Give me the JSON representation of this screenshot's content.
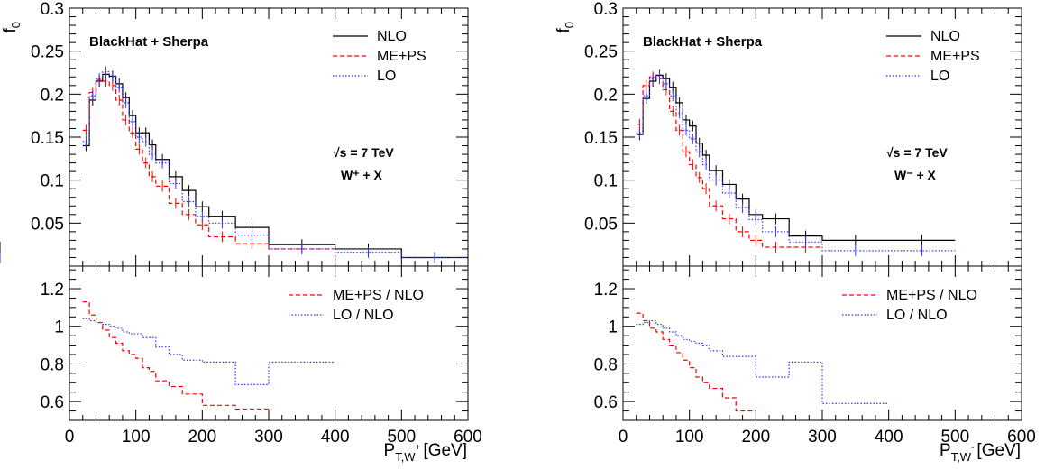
{
  "chart_data": [
    {
      "type": "line",
      "panel": "left",
      "title": "",
      "xlabel": "P_{T,W+} [GeV]",
      "xlabel_main": "P",
      "xlabel_sub": "T,W",
      "xlabel_sup": "+",
      "xlabel_unit": "[GeV]",
      "xlim": [
        0,
        600
      ],
      "xticks": [
        "0",
        "100",
        "200",
        "300",
        "400",
        "500",
        "600"
      ],
      "top": {
        "ylabel": "f",
        "ylabel_sub": "0",
        "ylim": [
          0,
          0.3
        ],
        "yticks": [
          "0.05",
          "0.1",
          "0.15",
          "0.2",
          "0.25",
          "0.3"
        ],
        "annotation_title": "BlackHat + Sherpa",
        "annotation_energy": "√s = 7 TeV",
        "annotation_process": "W⁺ + X",
        "bin_edges": [
          20,
          30,
          40,
          50,
          60,
          70,
          80,
          90,
          100,
          110,
          120,
          130,
          150,
          170,
          190,
          210,
          250,
          300,
          400,
          500,
          600
        ],
        "series": [
          {
            "name": "NLO",
            "color": "#000000",
            "dash": "solid",
            "values": [
              0.14,
              0.193,
              0.215,
              0.223,
              0.221,
              0.212,
              0.196,
              0.175,
              0.155,
              0.155,
              0.141,
              0.124,
              0.104,
              0.088,
              0.069,
              0.058,
              0.045,
              0.025,
              0.02,
              0.01,
              0.01
            ]
          },
          {
            "name": "ME+PS",
            "color": "#ff0000",
            "dash": "dash",
            "values": [
              0.158,
              0.202,
              0.217,
              0.215,
              0.21,
              0.193,
              0.17,
              0.155,
              0.136,
              0.12,
              0.104,
              0.093,
              0.073,
              0.06,
              0.048,
              0.034,
              0.026,
              0.02,
              null,
              null,
              null
            ]
          },
          {
            "name": "LO",
            "color": "#3333ff",
            "dash": "dot",
            "values": [
              0.145,
              0.198,
              0.218,
              0.226,
              0.22,
              0.208,
              0.19,
              0.168,
              0.15,
              0.145,
              0.13,
              0.12,
              0.096,
              0.075,
              0.058,
              0.05,
              0.036,
              0.02,
              0.016,
              0.01,
              0.01
            ]
          }
        ]
      },
      "bottom": {
        "ylim": [
          0.5,
          1.32
        ],
        "yticks": [
          "0.6",
          "0.8",
          "1",
          "1.2"
        ],
        "bin_edges": [
          20,
          30,
          40,
          50,
          60,
          70,
          80,
          90,
          100,
          110,
          120,
          130,
          150,
          170,
          200,
          250,
          300,
          400
        ],
        "series": [
          {
            "name": "ME+PS / NLO",
            "color": "#ff0000",
            "dash": "dash",
            "values": [
              1.13,
              1.06,
              1.02,
              0.98,
              0.94,
              0.91,
              0.87,
              0.85,
              0.83,
              0.78,
              0.76,
              0.71,
              0.68,
              0.64,
              0.58,
              0.56,
              null
            ]
          },
          {
            "name": "LO / NLO",
            "color": "#3333ff",
            "dash": "dot",
            "values": [
              1.04,
              1.03,
              1.02,
              1.01,
              1.0,
              0.99,
              0.97,
              0.96,
              0.96,
              0.94,
              0.94,
              0.89,
              0.85,
              0.82,
              0.81,
              0.69,
              0.81
            ]
          }
        ]
      }
    },
    {
      "type": "line",
      "panel": "right",
      "title": "",
      "xlabel": "P_{T,W-} [GeV]",
      "xlabel_main": "P",
      "xlabel_sub": "T,W",
      "xlabel_sup": "-",
      "xlabel_unit": "[GeV]",
      "xlim": [
        0,
        600
      ],
      "xticks": [
        "0",
        "100",
        "200",
        "300",
        "400",
        "500",
        "600"
      ],
      "top": {
        "ylabel": "f",
        "ylabel_sub": "0",
        "ylim": [
          0,
          0.3
        ],
        "yticks": [
          "0.05",
          "0.1",
          "0.15",
          "0.2",
          "0.25",
          "0.3"
        ],
        "annotation_title": "BlackHat + Sherpa",
        "annotation_energy": "√s = 7 TeV",
        "annotation_process": "W⁻ + X",
        "bin_edges": [
          20,
          30,
          40,
          50,
          60,
          70,
          80,
          90,
          100,
          110,
          120,
          130,
          150,
          170,
          190,
          210,
          250,
          300,
          400,
          500,
          600
        ],
        "series": [
          {
            "name": "NLO",
            "color": "#000000",
            "dash": "solid",
            "values": [
              0.153,
              0.195,
              0.215,
              0.222,
              0.218,
              0.208,
              0.19,
              0.17,
              0.163,
              0.143,
              0.129,
              0.111,
              0.095,
              0.078,
              0.06,
              0.055,
              0.035,
              0.03,
              0.03,
              null,
              0.022
            ]
          },
          {
            "name": "ME+PS",
            "color": "#ff0000",
            "dash": "dash",
            "values": [
              0.165,
              0.21,
              0.22,
              0.218,
              0.205,
              0.18,
              0.158,
              0.133,
              0.118,
              0.103,
              0.09,
              0.07,
              0.055,
              0.04,
              0.03,
              0.022,
              0.022,
              null,
              null,
              null,
              null
            ]
          },
          {
            "name": "LO",
            "color": "#3333ff",
            "dash": "dot",
            "values": [
              0.155,
              0.198,
              0.218,
              0.221,
              0.212,
              0.198,
              0.178,
              0.158,
              0.148,
              0.133,
              0.118,
              0.1,
              0.085,
              0.068,
              0.054,
              0.04,
              0.028,
              0.018,
              0.018,
              null,
              null
            ]
          }
        ]
      },
      "bottom": {
        "ylim": [
          0.5,
          1.32
        ],
        "yticks": [
          "0.6",
          "0.8",
          "1",
          "1.2"
        ],
        "bin_edges": [
          20,
          30,
          40,
          50,
          60,
          70,
          80,
          90,
          100,
          110,
          120,
          130,
          150,
          170,
          200,
          250,
          300,
          400
        ],
        "series": [
          {
            "name": "ME+PS / NLO",
            "color": "#ff0000",
            "dash": "dash",
            "values": [
              1.07,
              1.03,
              0.99,
              0.97,
              0.93,
              0.9,
              0.86,
              0.82,
              0.78,
              0.73,
              0.7,
              0.67,
              0.62,
              0.55,
              null,
              null,
              null
            ]
          },
          {
            "name": "LO / NLO",
            "color": "#3333ff",
            "dash": "dot",
            "values": [
              1.01,
              1.02,
              1.03,
              1.01,
              0.99,
              0.97,
              0.95,
              0.93,
              0.92,
              0.91,
              0.9,
              0.87,
              0.84,
              0.84,
              0.73,
              0.81,
              0.59
            ]
          }
        ]
      }
    }
  ]
}
